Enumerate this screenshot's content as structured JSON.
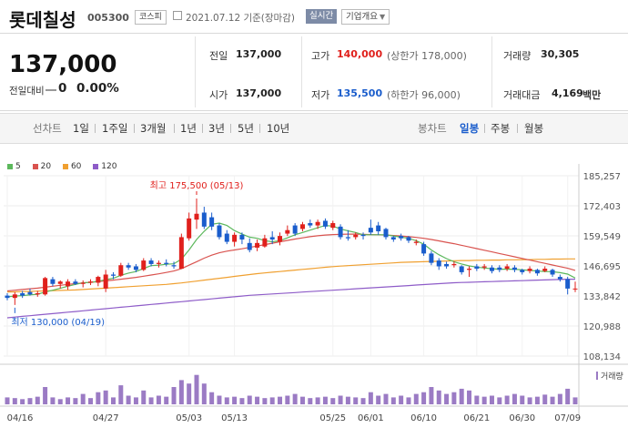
{
  "header": {
    "name": "롯데칠성",
    "code": "005300",
    "market": "코스피",
    "date": "2021.07.12 기준(장마감)",
    "realtime_label": "실시간",
    "info_label": "기업개요"
  },
  "summary": {
    "price": "137,000",
    "change_label": "전일대비",
    "change_value": "0",
    "change_pct": "0.00%",
    "prev_label": "전일",
    "prev_value": "137,000",
    "high_label": "고가",
    "high_value": "140,000",
    "upper_limit": "(상한가 178,000)",
    "volume_label": "거래량",
    "volume_value": "30,305",
    "open_label": "시가",
    "open_value": "137,000",
    "low_label": "저가",
    "low_value": "135,500",
    "lower_limit": "(하한가 96,000)",
    "amount_label": "거래대금",
    "amount_value": "4,169",
    "amount_unit": "백만"
  },
  "tabs": {
    "line_label": "선차트",
    "line_items": [
      "1일",
      "1주일",
      "3개월",
      "1년",
      "3년",
      "5년",
      "10년"
    ],
    "candle_label": "봉차트",
    "candle_items": [
      "일봉",
      "주봉",
      "월봉"
    ],
    "candle_selected": "일봉"
  },
  "colors": {
    "up": "#e0201c",
    "down": "#1a5dcc",
    "ma5": "#5cb85c",
    "ma20": "#d9534f",
    "ma60": "#f0a030",
    "ma120": "#8e5cc8",
    "volume": "#9b7bc4"
  },
  "chart_data": {
    "type": "candlestick",
    "legend": [
      "5",
      "20",
      "60",
      "120"
    ],
    "y_ticks": [
      185257,
      172403,
      159549,
      146695,
      133842,
      120988,
      108134
    ],
    "ylim": [
      108134,
      185257
    ],
    "x_ticks": [
      "04/16",
      "04/27",
      "05/03",
      "05/13",
      "05/25",
      "06/01",
      "06/10",
      "06/21",
      "06/30",
      "07/09"
    ],
    "annotations": {
      "high": "최고 175,500 (05/13)",
      "low": "최저 130,000 (04/19)"
    },
    "volume_label": "거래량",
    "candles": [
      {
        "o": 134000,
        "c": 133000,
        "h": 135000,
        "l": 132000,
        "v": 0.2
      },
      {
        "o": 133000,
        "c": 134500,
        "h": 135500,
        "l": 130000,
        "v": 0.18
      },
      {
        "o": 135000,
        "c": 134000,
        "h": 136000,
        "l": 133000,
        "v": 0.15
      },
      {
        "o": 135500,
        "c": 134500,
        "h": 137000,
        "l": 134000,
        "v": 0.18
      },
      {
        "o": 134500,
        "c": 135000,
        "h": 136000,
        "l": 133500,
        "v": 0.22
      },
      {
        "o": 134500,
        "c": 141500,
        "h": 142000,
        "l": 134000,
        "v": 0.5
      },
      {
        "o": 141000,
        "c": 139000,
        "h": 142000,
        "l": 138000,
        "v": 0.2
      },
      {
        "o": 139000,
        "c": 140000,
        "h": 140500,
        "l": 137000,
        "v": 0.15
      },
      {
        "o": 138000,
        "c": 140000,
        "h": 141000,
        "l": 136500,
        "v": 0.2
      },
      {
        "o": 140000,
        "c": 139000,
        "h": 141000,
        "l": 138500,
        "v": 0.18
      },
      {
        "o": 139000,
        "c": 139500,
        "h": 140500,
        "l": 137500,
        "v": 0.3
      },
      {
        "o": 139500,
        "c": 140000,
        "h": 141000,
        "l": 138500,
        "v": 0.18
      },
      {
        "o": 139500,
        "c": 142000,
        "h": 142500,
        "l": 138000,
        "v": 0.35
      },
      {
        "o": 137000,
        "c": 143000,
        "h": 145000,
        "l": 135500,
        "v": 0.4
      },
      {
        "o": 143000,
        "c": 142500,
        "h": 144000,
        "l": 141000,
        "v": 0.2
      },
      {
        "o": 142500,
        "c": 147000,
        "h": 148000,
        "l": 142000,
        "v": 0.55
      },
      {
        "o": 147000,
        "c": 146000,
        "h": 148000,
        "l": 145000,
        "v": 0.25
      },
      {
        "o": 146500,
        "c": 145000,
        "h": 147500,
        "l": 144000,
        "v": 0.2
      },
      {
        "o": 145000,
        "c": 149000,
        "h": 150000,
        "l": 144500,
        "v": 0.4
      },
      {
        "o": 149000,
        "c": 147500,
        "h": 150000,
        "l": 146500,
        "v": 0.2
      },
      {
        "o": 147500,
        "c": 148000,
        "h": 149000,
        "l": 146000,
        "v": 0.25
      },
      {
        "o": 148000,
        "c": 147500,
        "h": 149500,
        "l": 146500,
        "v": 0.22
      },
      {
        "o": 147000,
        "c": 146500,
        "h": 148500,
        "l": 145500,
        "v": 0.5
      },
      {
        "o": 145500,
        "c": 159000,
        "h": 160500,
        "l": 145500,
        "v": 0.7
      },
      {
        "o": 158500,
        "c": 167000,
        "h": 169500,
        "l": 157500,
        "v": 0.6
      },
      {
        "o": 166500,
        "c": 169000,
        "h": 175500,
        "l": 162500,
        "v": 0.85
      },
      {
        "o": 169500,
        "c": 163500,
        "h": 172000,
        "l": 162500,
        "v": 0.6
      },
      {
        "o": 167500,
        "c": 163500,
        "h": 169500,
        "l": 162000,
        "v": 0.35
      },
      {
        "o": 164000,
        "c": 159000,
        "h": 165000,
        "l": 158000,
        "v": 0.25
      },
      {
        "o": 160500,
        "c": 157000,
        "h": 162000,
        "l": 156000,
        "v": 0.2
      },
      {
        "o": 157000,
        "c": 160000,
        "h": 161000,
        "l": 155000,
        "v": 0.22
      },
      {
        "o": 160000,
        "c": 158000,
        "h": 161000,
        "l": 156000,
        "v": 0.18
      },
      {
        "o": 156500,
        "c": 153500,
        "h": 158500,
        "l": 152500,
        "v": 0.25
      },
      {
        "o": 154500,
        "c": 156500,
        "h": 158000,
        "l": 153000,
        "v": 0.22
      },
      {
        "o": 155000,
        "c": 158500,
        "h": 160000,
        "l": 154500,
        "v": 0.18
      },
      {
        "o": 159000,
        "c": 158000,
        "h": 161500,
        "l": 156000,
        "v": 0.2
      },
      {
        "o": 157000,
        "c": 159500,
        "h": 161000,
        "l": 155500,
        "v": 0.22
      },
      {
        "o": 160500,
        "c": 162000,
        "h": 164000,
        "l": 159500,
        "v": 0.25
      },
      {
        "o": 164000,
        "c": 160500,
        "h": 165000,
        "l": 159500,
        "v": 0.3
      },
      {
        "o": 162500,
        "c": 164500,
        "h": 165500,
        "l": 161500,
        "v": 0.22
      },
      {
        "o": 165000,
        "c": 164000,
        "h": 166500,
        "l": 163000,
        "v": 0.18
      },
      {
        "o": 164000,
        "c": 165500,
        "h": 166500,
        "l": 162500,
        "v": 0.2
      },
      {
        "o": 166000,
        "c": 163500,
        "h": 167000,
        "l": 162500,
        "v": 0.22
      },
      {
        "o": 163000,
        "c": 165000,
        "h": 166000,
        "l": 162000,
        "v": 0.18
      },
      {
        "o": 163500,
        "c": 159000,
        "h": 164500,
        "l": 158000,
        "v": 0.25
      },
      {
        "o": 159000,
        "c": 158500,
        "h": 162000,
        "l": 157500,
        "v": 0.22
      },
      {
        "o": 159000,
        "c": 160000,
        "h": 161000,
        "l": 158000,
        "v": 0.2
      },
      {
        "o": 160000,
        "c": 159500,
        "h": 161000,
        "l": 158000,
        "v": 0.18
      },
      {
        "o": 163000,
        "c": 161000,
        "h": 166500,
        "l": 160000,
        "v": 0.35
      },
      {
        "o": 164000,
        "c": 161500,
        "h": 165500,
        "l": 160000,
        "v": 0.25
      },
      {
        "o": 162500,
        "c": 159000,
        "h": 163000,
        "l": 158000,
        "v": 0.3
      },
      {
        "o": 159000,
        "c": 158000,
        "h": 159500,
        "l": 157000,
        "v": 0.2
      },
      {
        "o": 159500,
        "c": 158500,
        "h": 160500,
        "l": 157500,
        "v": 0.25
      },
      {
        "o": 159000,
        "c": 157500,
        "h": 159500,
        "l": 156500,
        "v": 0.2
      },
      {
        "o": 156500,
        "c": 157000,
        "h": 158000,
        "l": 155500,
        "v": 0.3
      },
      {
        "o": 156000,
        "c": 152000,
        "h": 157000,
        "l": 151000,
        "v": 0.35
      },
      {
        "o": 152000,
        "c": 148000,
        "h": 153000,
        "l": 147000,
        "v": 0.5
      },
      {
        "o": 149000,
        "c": 146500,
        "h": 150000,
        "l": 145000,
        "v": 0.4
      },
      {
        "o": 147500,
        "c": 146500,
        "h": 148500,
        "l": 145500,
        "v": 0.3
      },
      {
        "o": 147000,
        "c": 147500,
        "h": 148500,
        "l": 146000,
        "v": 0.35
      },
      {
        "o": 146500,
        "c": 144000,
        "h": 147000,
        "l": 143000,
        "v": 0.45
      },
      {
        "o": 145000,
        "c": 145500,
        "h": 146500,
        "l": 142000,
        "v": 0.4
      },
      {
        "o": 146500,
        "c": 145500,
        "h": 147500,
        "l": 144500,
        "v": 0.25
      },
      {
        "o": 146000,
        "c": 146500,
        "h": 147500,
        "l": 145000,
        "v": 0.22
      },
      {
        "o": 146000,
        "c": 144500,
        "h": 147000,
        "l": 143500,
        "v": 0.25
      },
      {
        "o": 146000,
        "c": 145000,
        "h": 147000,
        "l": 144000,
        "v": 0.2
      },
      {
        "o": 145500,
        "c": 146500,
        "h": 147500,
        "l": 144500,
        "v": 0.25
      },
      {
        "o": 146000,
        "c": 145000,
        "h": 147000,
        "l": 144000,
        "v": 0.3
      },
      {
        "o": 145000,
        "c": 144000,
        "h": 145500,
        "l": 143000,
        "v": 0.25
      },
      {
        "o": 144500,
        "c": 145500,
        "h": 146500,
        "l": 143500,
        "v": 0.2
      },
      {
        "o": 145000,
        "c": 143500,
        "h": 145500,
        "l": 142500,
        "v": 0.22
      },
      {
        "o": 144500,
        "c": 145500,
        "h": 146500,
        "l": 144000,
        "v": 0.28
      },
      {
        "o": 145000,
        "c": 143000,
        "h": 145500,
        "l": 142000,
        "v": 0.22
      },
      {
        "o": 142000,
        "c": 141000,
        "h": 143000,
        "l": 140000,
        "v": 0.3
      },
      {
        "o": 141000,
        "c": 137000,
        "h": 142000,
        "l": 134500,
        "v": 0.45
      },
      {
        "o": 137000,
        "c": 137000,
        "h": 140000,
        "l": 135500,
        "v": 0.2
      }
    ],
    "ma5": [
      133500,
      133800,
      134000,
      134300,
      134600,
      135500,
      136300,
      137100,
      138000,
      138800,
      139500,
      139600,
      140100,
      140800,
      141400,
      142700,
      143600,
      144300,
      145600,
      146800,
      147000,
      147400,
      147600,
      149600,
      153500,
      158000,
      161500,
      164500,
      165000,
      164000,
      161800,
      160300,
      159000,
      158500,
      157500,
      157000,
      157500,
      158700,
      160000,
      161000,
      162000,
      163000,
      164000,
      163700,
      162500,
      161700,
      161000,
      160000,
      160000,
      160000,
      160000,
      159500,
      159000,
      158500,
      157500,
      156000,
      153500,
      151500,
      149800,
      148500,
      147500,
      146700,
      146200,
      145800,
      145500,
      145300,
      145300,
      145300,
      145000,
      144800,
      144500,
      144300,
      144200,
      143800,
      143200,
      141500
    ],
    "ma20": [
      136000,
      136300,
      136600,
      136900,
      137200,
      137600,
      138000,
      138400,
      138800,
      139100,
      139400,
      139700,
      140000,
      140300,
      140600,
      141000,
      141400,
      141800,
      142300,
      142800,
      143300,
      143900,
      144500,
      145500,
      147000,
      148500,
      150000,
      151300,
      152300,
      153000,
      153500,
      154000,
      154600,
      155200,
      155800,
      156400,
      157000,
      157600,
      158200,
      158700,
      159200,
      159600,
      159900,
      160100,
      160200,
      160300,
      160300,
      160200,
      160100,
      160000,
      159900,
      159700,
      159500,
      159200,
      158900,
      158500,
      158000,
      157400,
      156800,
      156200,
      155500,
      154800,
      154100,
      153400,
      152700,
      152000,
      151300,
      150600,
      149900,
      149200,
      148500,
      147800,
      147100,
      146400,
      145700,
      144800
    ],
    "ma60": [
      135500,
      135600,
      135700,
      135800,
      135900,
      136000,
      136100,
      136200,
      136300,
      136400,
      136600,
      136800,
      137000,
      137200,
      137400,
      137600,
      137800,
      138000,
      138200,
      138400,
      138600,
      138800,
      139100,
      139400,
      139800,
      140200,
      140600,
      141000,
      141400,
      141800,
      142200,
      142600,
      143000,
      143400,
      143700,
      144000,
      144300,
      144600,
      144900,
      145200,
      145500,
      145800,
      146100,
      146400,
      146600,
      146800,
      147000,
      147200,
      147400,
      147600,
      147800,
      148000,
      148200,
      148300,
      148400,
      148500,
      148600,
      148700,
      148800,
      148900,
      149000,
      149000,
      149100,
      149100,
      149200,
      149200,
      149300,
      149300,
      149400,
      149400,
      149500,
      149500,
      149600,
      149600,
      149700,
      149700
    ],
    "ma120": [
      124500,
      124800,
      125100,
      125400,
      125700,
      126000,
      126300,
      126600,
      126900,
      127200,
      127500,
      127800,
      128100,
      128400,
      128700,
      129000,
      129300,
      129600,
      129900,
      130200,
      130500,
      130800,
      131100,
      131400,
      131700,
      132000,
      132300,
      132600,
      132900,
      133200,
      133500,
      133800,
      134100,
      134300,
      134500,
      134700,
      134900,
      135100,
      135300,
      135500,
      135700,
      135900,
      136100,
      136300,
      136500,
      136700,
      136900,
      137100,
      137300,
      137500,
      137700,
      137900,
      138100,
      138300,
      138500,
      138700,
      138900,
      139100,
      139300,
      139500,
      139600,
      139700,
      139800,
      139900,
      140000,
      140100,
      140200,
      140300,
      140400,
      140500,
      140600,
      140700,
      140800,
      140900,
      141000,
      141000
    ]
  }
}
